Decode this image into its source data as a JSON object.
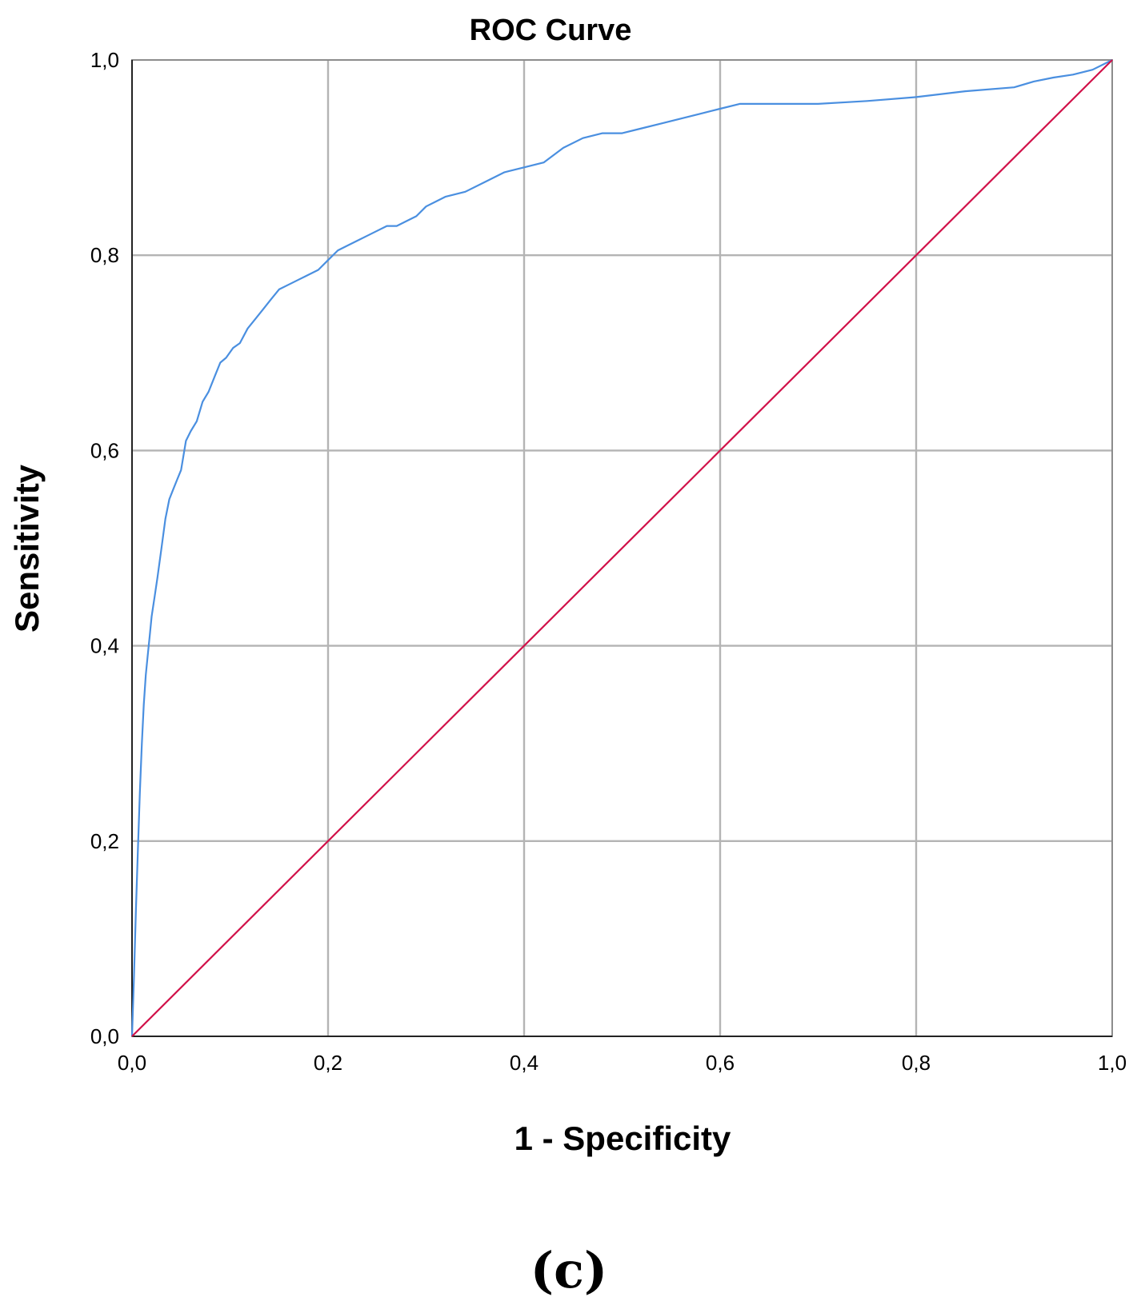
{
  "chart_data": {
    "type": "line",
    "title": "ROC Curve",
    "xlabel": "1 - Specificity",
    "ylabel": "Sensitivity",
    "xlim": [
      0,
      1
    ],
    "ylim": [
      0,
      1
    ],
    "grid": true,
    "x_ticks": [
      "0,0",
      "0,2",
      "0,4",
      "0,6",
      "0,8",
      "1,0"
    ],
    "y_ticks": [
      "0,0",
      "0,2",
      "0,4",
      "0,6",
      "0,8",
      "1,0"
    ],
    "panel_label": "(c)",
    "series": [
      {
        "color": "#4a8fe0",
        "x": [
          0,
          0.002,
          0.004,
          0.006,
          0.008,
          0.01,
          0.012,
          0.014,
          0.016,
          0.018,
          0.02,
          0.023,
          0.026,
          0.03,
          0.034,
          0.038,
          0.042,
          0.046,
          0.05,
          0.055,
          0.06,
          0.066,
          0.072,
          0.078,
          0.084,
          0.09,
          0.096,
          0.103,
          0.11,
          0.118,
          0.126,
          0.134,
          0.142,
          0.15,
          0.16,
          0.17,
          0.18,
          0.19,
          0.2,
          0.21,
          0.22,
          0.23,
          0.24,
          0.25,
          0.26,
          0.27,
          0.28,
          0.29,
          0.3,
          0.32,
          0.34,
          0.36,
          0.38,
          0.4,
          0.42,
          0.44,
          0.46,
          0.48,
          0.5,
          0.52,
          0.54,
          0.56,
          0.58,
          0.6,
          0.62,
          0.65,
          0.7,
          0.75,
          0.8,
          0.85,
          0.9,
          0.92,
          0.94,
          0.96,
          0.98,
          1.0
        ],
        "y": [
          0,
          0.06,
          0.13,
          0.19,
          0.25,
          0.3,
          0.34,
          0.37,
          0.39,
          0.41,
          0.43,
          0.45,
          0.47,
          0.5,
          0.53,
          0.55,
          0.56,
          0.57,
          0.58,
          0.61,
          0.62,
          0.63,
          0.65,
          0.66,
          0.675,
          0.69,
          0.695,
          0.705,
          0.71,
          0.725,
          0.735,
          0.745,
          0.755,
          0.765,
          0.77,
          0.775,
          0.78,
          0.785,
          0.795,
          0.805,
          0.81,
          0.815,
          0.82,
          0.825,
          0.83,
          0.83,
          0.835,
          0.84,
          0.85,
          0.86,
          0.865,
          0.875,
          0.885,
          0.89,
          0.895,
          0.91,
          0.92,
          0.925,
          0.925,
          0.93,
          0.935,
          0.94,
          0.945,
          0.95,
          0.955,
          0.955,
          0.955,
          0.958,
          0.962,
          0.968,
          0.972,
          0.978,
          0.982,
          0.985,
          0.99,
          1.0
        ]
      },
      {
        "color": "#d11149",
        "x": [
          0,
          1
        ],
        "y": [
          0,
          1
        ]
      }
    ]
  }
}
